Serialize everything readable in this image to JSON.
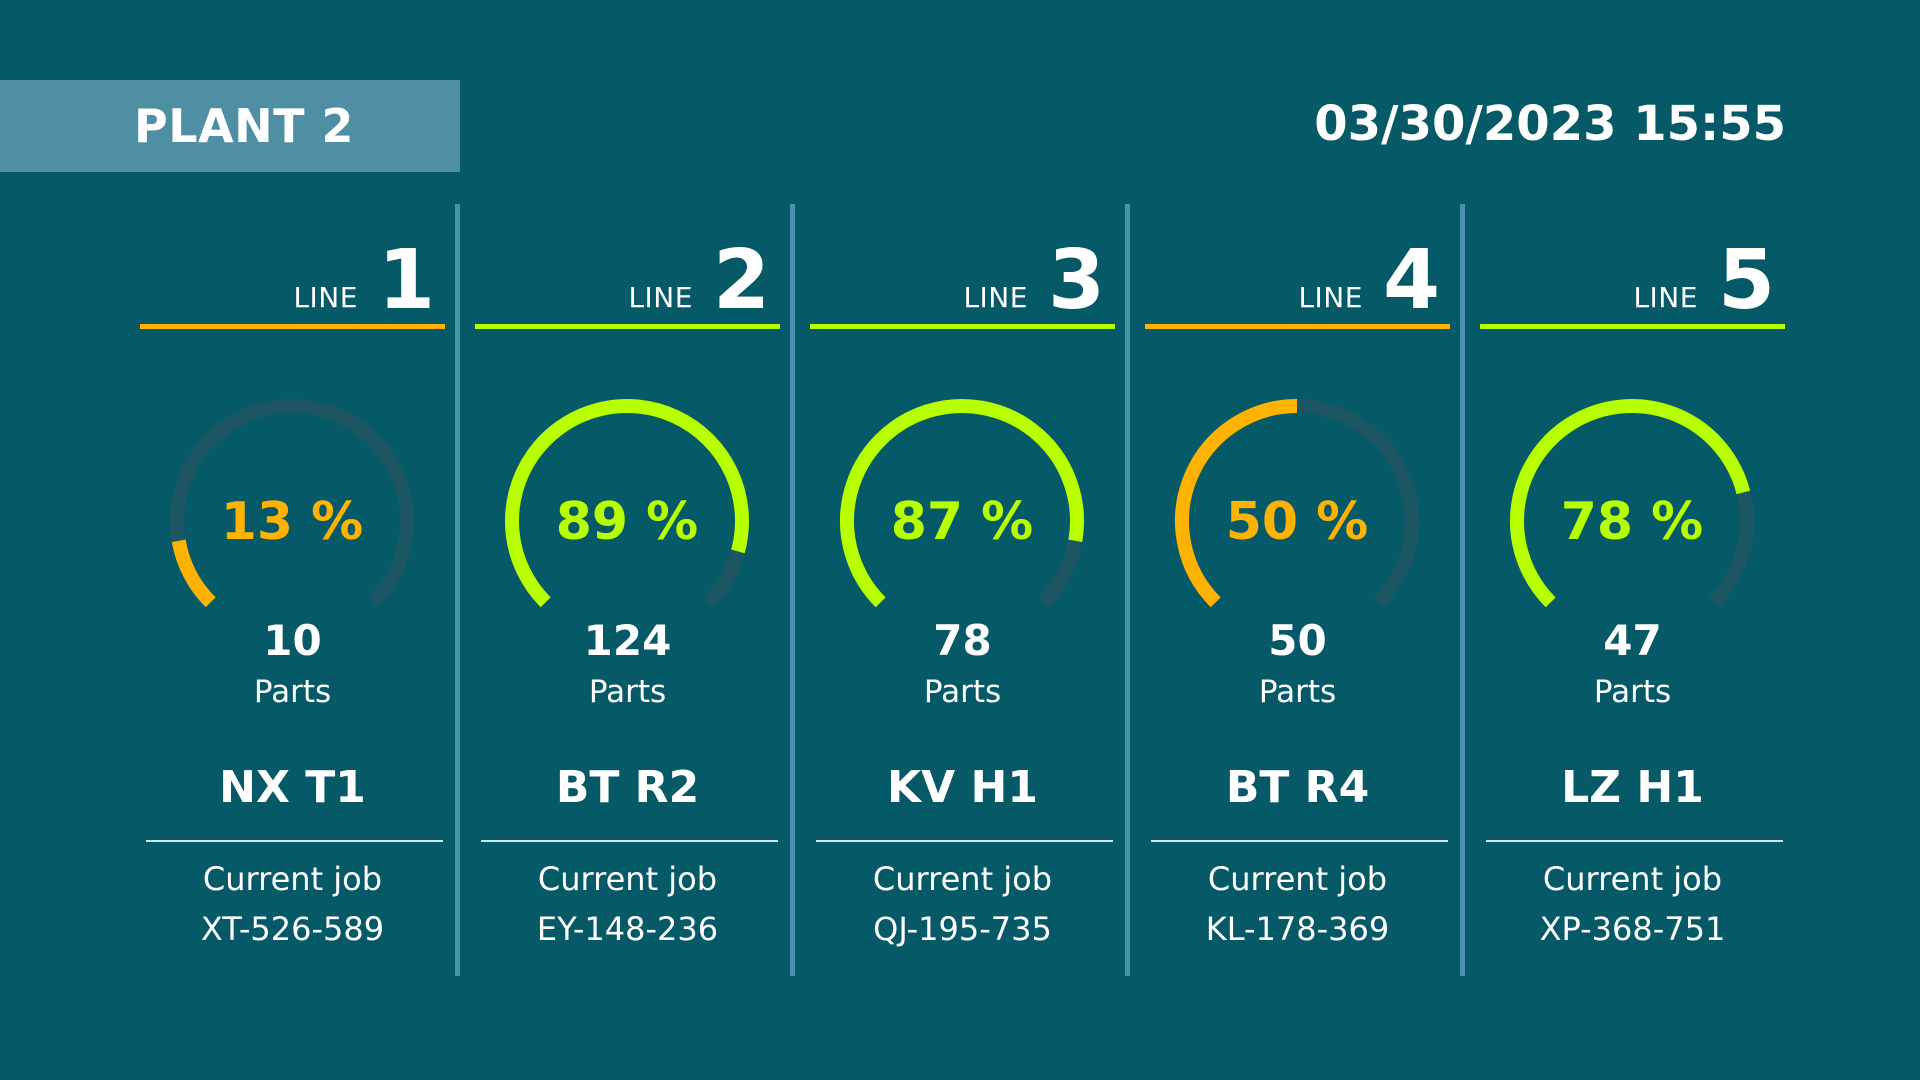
{
  "header": {
    "plant_title": "PLANT 2",
    "datetime": "03/30/2023 15:55"
  },
  "colors": {
    "background": "#065a68",
    "banner": "#4f8fa3",
    "divider": "#4a92ad",
    "track": "#1d5663",
    "green": "#b8ff00",
    "orange": "#ffb300"
  },
  "labels": {
    "line_word": "LINE",
    "parts_word": "Parts",
    "current_job": "Current job"
  },
  "lines": [
    {
      "number": "1",
      "percent_label": "13 %",
      "percent": 13,
      "parts": "10",
      "product": "NX T1",
      "job_id": "XT-526-589",
      "status_color": "#ffb300"
    },
    {
      "number": "2",
      "percent_label": "89 %",
      "percent": 89,
      "parts": "124",
      "product": "BT R2",
      "job_id": "EY-148-236",
      "status_color": "#b8ff00"
    },
    {
      "number": "3",
      "percent_label": "87 %",
      "percent": 87,
      "parts": "78",
      "product": "KV H1",
      "job_id": "QJ-195-735",
      "status_color": "#b8ff00"
    },
    {
      "number": "4",
      "percent_label": "50 %",
      "percent": 50,
      "parts": "50",
      "product": "BT R4",
      "job_id": "KL-178-369",
      "status_color": "#ffb300"
    },
    {
      "number": "5",
      "percent_label": "78 %",
      "percent": 78,
      "parts": "47",
      "product": "LZ H1",
      "job_id": "XP-368-751",
      "status_color": "#b8ff00"
    }
  ]
}
